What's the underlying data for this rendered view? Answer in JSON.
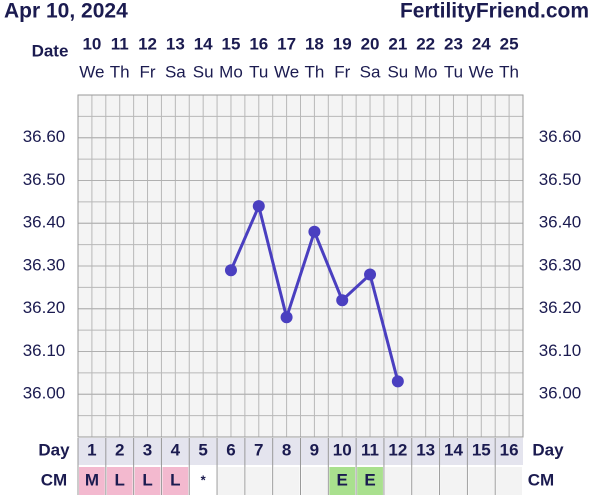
{
  "header": {
    "date": "Apr 10, 2024",
    "site": "FertilityFriend.com"
  },
  "chart_data": {
    "type": "line",
    "row_labels": {
      "date": "Date",
      "day": "Day",
      "cm": "CM"
    },
    "dates": [
      10,
      11,
      12,
      13,
      14,
      15,
      16,
      17,
      18,
      19,
      20,
      21,
      22,
      23,
      24,
      25
    ],
    "weekdays": [
      "We",
      "Th",
      "Fr",
      "Sa",
      "Su",
      "Mo",
      "Tu",
      "We",
      "Th",
      "Fr",
      "Sa",
      "Su",
      "Mo",
      "Tu",
      "We",
      "Th"
    ],
    "categories": [
      1,
      2,
      3,
      4,
      5,
      6,
      7,
      8,
      9,
      10,
      11,
      12,
      13,
      14,
      15,
      16
    ],
    "series": [
      {
        "color": "#4a3fc0",
        "values": [
          null,
          null,
          null,
          null,
          null,
          36.29,
          36.44,
          36.18,
          36.38,
          36.22,
          36.28,
          36.03,
          null,
          null,
          null,
          null
        ]
      }
    ],
    "ylim": [
      35.9,
      36.7
    ],
    "yticks": [
      {
        "value": 36.6,
        "label": "36.60"
      },
      {
        "value": 36.5,
        "label": "36.50"
      },
      {
        "value": 36.4,
        "label": "36.40"
      },
      {
        "value": 36.3,
        "label": "36.30"
      },
      {
        "value": 36.2,
        "label": "36.20"
      },
      {
        "value": 36.1,
        "label": "36.10"
      },
      {
        "value": 36.0,
        "label": "36.00"
      }
    ],
    "grid": true,
    "cm": [
      "M",
      "L",
      "L",
      "L",
      "*",
      null,
      null,
      null,
      null,
      "E",
      "E",
      null,
      null,
      null,
      null,
      null
    ],
    "cm_colors": {
      "M": "#f3b9cf",
      "L": "#f3b9cf",
      "E": "#a9e08e"
    }
  }
}
